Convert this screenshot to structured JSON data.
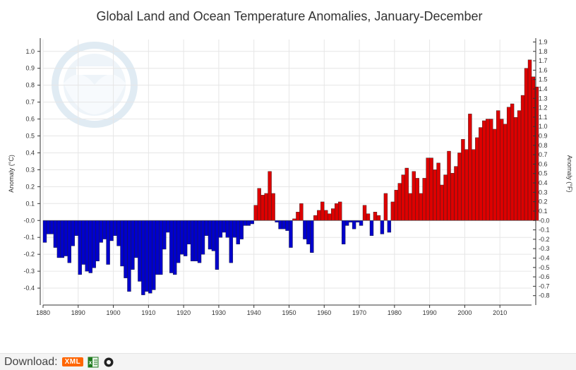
{
  "chart_data": {
    "type": "bar",
    "title": "Global Land and Ocean Temperature Anomalies, January-December",
    "ylabel_left": "Anomaly (°C)",
    "ylabel_right": "Anomaly (°F)",
    "x_start": 1880,
    "x_end": 2018,
    "xlim": [
      1880,
      2019
    ],
    "ylim": [
      -0.5,
      1.07
    ],
    "x_ticks": [
      1880,
      1890,
      1900,
      1910,
      1920,
      1930,
      1940,
      1950,
      1960,
      1970,
      1980,
      1990,
      2000,
      2010
    ],
    "y_ticks_left": [
      -0.4,
      -0.3,
      -0.2,
      -0.1,
      -0.0,
      0.1,
      0.2,
      0.3,
      0.4,
      0.5,
      0.6,
      0.7,
      0.8,
      0.9,
      1.0
    ],
    "y_ticks_left_labels": [
      "-0.4",
      "-0.3",
      "-0.2",
      "-0.1",
      "-0.0",
      "0.1",
      "0.2",
      "0.3",
      "0.4",
      "0.5",
      "0.6",
      "0.7",
      "0.8",
      "0.9",
      "1.0"
    ],
    "y_ticks_right": [
      -0.8,
      -0.7,
      -0.6,
      -0.5,
      -0.4,
      -0.3,
      -0.2,
      -0.1,
      -0.0,
      0.1,
      0.2,
      0.3,
      0.4,
      0.5,
      0.6,
      0.7,
      0.8,
      0.9,
      1.0,
      1.1,
      1.2,
      1.3,
      1.4,
      1.5,
      1.6,
      1.7,
      1.8,
      1.9
    ],
    "y_ticks_right_labels": [
      "-0.8",
      "-0.7",
      "-0.6",
      "-0.5",
      "-0.4",
      "-0.3",
      "-0.2",
      "-0.1",
      "-0.0",
      "0.1",
      "0.2",
      "0.3",
      "0.4",
      "0.5",
      "0.6",
      "0.7",
      "0.8",
      "0.9",
      "1.0",
      "1.1",
      "1.2",
      "1.3",
      "1.4",
      "1.5",
      "1.6",
      "1.7",
      "1.8",
      "1.9"
    ],
    "grid": true,
    "colors": {
      "positive": "#dd0000",
      "negative": "#0000cc",
      "bar_stroke": "#222222"
    },
    "values": [
      -0.13,
      -0.08,
      -0.08,
      -0.16,
      -0.22,
      -0.22,
      -0.21,
      -0.25,
      -0.15,
      -0.09,
      -0.32,
      -0.26,
      -0.3,
      -0.31,
      -0.28,
      -0.24,
      -0.13,
      -0.11,
      -0.26,
      -0.12,
      -0.09,
      -0.15,
      -0.27,
      -0.34,
      -0.42,
      -0.29,
      -0.22,
      -0.36,
      -0.44,
      -0.42,
      -0.43,
      -0.41,
      -0.32,
      -0.32,
      -0.17,
      -0.07,
      -0.31,
      -0.32,
      -0.25,
      -0.2,
      -0.21,
      -0.14,
      -0.24,
      -0.24,
      -0.25,
      -0.2,
      -0.09,
      -0.17,
      -0.18,
      -0.29,
      -0.1,
      -0.07,
      -0.1,
      -0.25,
      -0.1,
      -0.14,
      -0.11,
      -0.03,
      -0.03,
      -0.02,
      0.09,
      0.19,
      0.15,
      0.16,
      0.29,
      0.16,
      -0.01,
      -0.05,
      -0.05,
      -0.06,
      -0.16,
      0.01,
      0.05,
      0.1,
      -0.11,
      -0.14,
      -0.19,
      0.03,
      0.06,
      0.11,
      0.06,
      0.04,
      0.07,
      0.1,
      0.11,
      -0.14,
      -0.03,
      -0.01,
      -0.05,
      -0.01,
      -0.03,
      0.09,
      0.04,
      -0.09,
      0.05,
      0.03,
      -0.08,
      0.16,
      -0.07,
      0.11,
      0.18,
      0.22,
      0.27,
      0.31,
      0.16,
      0.29,
      0.25,
      0.16,
      0.25,
      0.37,
      0.37,
      0.3,
      0.34,
      0.21,
      0.27,
      0.41,
      0.28,
      0.32,
      0.4,
      0.48,
      0.42,
      0.63,
      0.42,
      0.49,
      0.55,
      0.59,
      0.6,
      0.6,
      0.54,
      0.65,
      0.6,
      0.57,
      0.67,
      0.69,
      0.61,
      0.65,
      0.74,
      0.9,
      0.95,
      0.85,
      0.79
    ]
  },
  "footer": {
    "download_label": "Download:",
    "xml_label": "XML"
  }
}
